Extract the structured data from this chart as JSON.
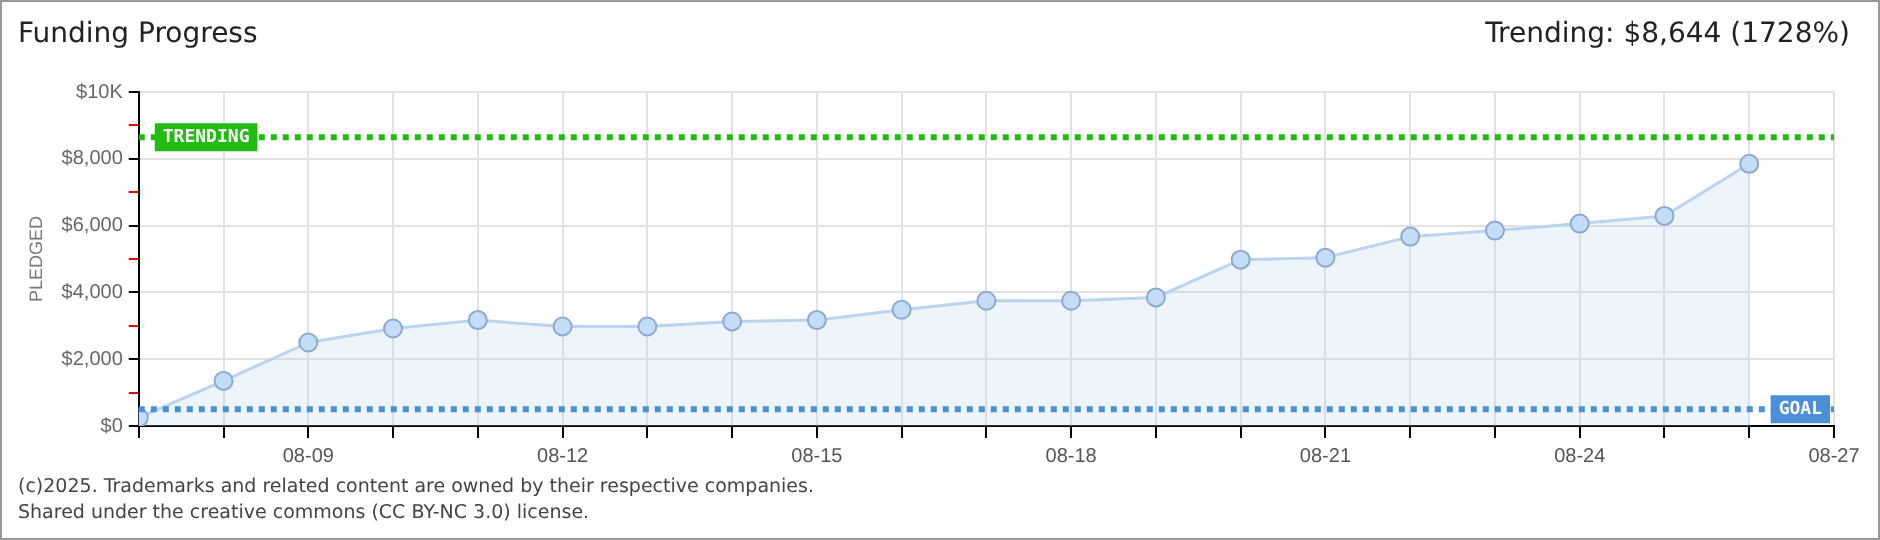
{
  "chart_data": {
    "type": "area",
    "title": "Funding Progress",
    "subtitle": "Trending: $8,644 (1728%)",
    "ylabel": "PLEDGED",
    "x": [
      "--08-07",
      "--08-08",
      "--08-09",
      "--08-10",
      "--08-11",
      "--08-12",
      "--08-13",
      "--08-14",
      "--08-15",
      "--08-16",
      "--08-17",
      "--08-18",
      "--08-19",
      "--08-20",
      "--08-21",
      "--08-22",
      "--08-23",
      "--08-24",
      "--08-25",
      "--08-26"
    ],
    "series": [
      {
        "color": "#b8d4f0",
        "values": [
          250,
          1350,
          2500,
          2920,
          3170,
          2980,
          2980,
          3130,
          3170,
          3480,
          3750,
          3750,
          3850,
          4980,
          5040,
          5670,
          5850,
          6060,
          6290,
          7850
        ]
      }
    ],
    "xlim": [
      "--08-07",
      "--08-27"
    ],
    "xticks": [
      {
        "value": "--08-07",
        "label": null
      },
      {
        "value": "--08-08",
        "label": null
      },
      {
        "value": "--08-09",
        "label": "08-09"
      },
      {
        "value": "--08-10",
        "label": null
      },
      {
        "value": "--08-11",
        "label": null
      },
      {
        "value": "--08-12",
        "label": "08-12"
      },
      {
        "value": "--08-13",
        "label": null
      },
      {
        "value": "--08-14",
        "label": null
      },
      {
        "value": "--08-15",
        "label": "08-15"
      },
      {
        "value": "--08-16",
        "label": null
      },
      {
        "value": "--08-17",
        "label": null
      },
      {
        "value": "--08-18",
        "label": "08-18"
      },
      {
        "value": "--08-19",
        "label": null
      },
      {
        "value": "--08-20",
        "label": null
      },
      {
        "value": "--08-21",
        "label": "08-21"
      },
      {
        "value": "--08-22",
        "label": null
      },
      {
        "value": "--08-23",
        "label": null
      },
      {
        "value": "--08-24",
        "label": "08-24"
      },
      {
        "value": "--08-25",
        "label": null
      },
      {
        "value": "--08-26",
        "label": null
      },
      {
        "value": "--08-27",
        "label": "08-27"
      }
    ],
    "ylim": [
      0,
      10000
    ],
    "yticks": [
      {
        "value": 0,
        "label": "$0"
      },
      {
        "value": 1000,
        "label": null
      },
      {
        "value": 2000,
        "label": "$2,000"
      },
      {
        "value": 3000,
        "label": null
      },
      {
        "value": 4000,
        "label": "$4,000"
      },
      {
        "value": 5000,
        "label": null
      },
      {
        "value": 6000,
        "label": "$6,000"
      },
      {
        "value": 7000,
        "label": null
      },
      {
        "value": 8000,
        "label": "$8,000"
      },
      {
        "value": 9000,
        "label": null
      },
      {
        "value": 10000,
        "label": "$10K"
      }
    ],
    "ref_lines": [
      {
        "axis": "y",
        "value": 8644,
        "label": "TRENDING",
        "color": "#22bb11",
        "line_style": "dotted"
      },
      {
        "axis": "y",
        "value": 500,
        "label": "GOAL",
        "color": "#4a8fd8",
        "line_style": "dotted"
      }
    ],
    "grid": true,
    "marker": "circle",
    "legend": false,
    "annotations": [
      "(c)2025. Trademarks and related content are owned by their respective companies.",
      "Shared under the creative commons (CC BY-NC 3.0) license."
    ]
  }
}
